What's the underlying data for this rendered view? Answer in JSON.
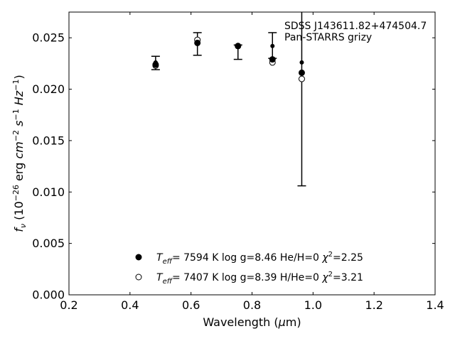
{
  "chart_data": {
    "type": "scatter",
    "xlabel": "Wavelength (μm)",
    "ylabel": "f_ν (10^−26 erg cm^−2 s^−1 Hz^−1)",
    "xlim": [
      0.2,
      1.4
    ],
    "ylim": [
      0.0,
      0.0275
    ],
    "x_ticks": [
      0.2,
      0.4,
      0.6,
      0.8,
      1.0,
      1.2,
      1.4
    ],
    "x_tick_labels": [
      "0.2",
      "0.4",
      "0.6",
      "0.8",
      "1.0",
      "1.2",
      "1.4"
    ],
    "y_ticks": [
      0.0,
      0.005,
      0.01,
      0.015,
      0.02,
      0.025
    ],
    "y_tick_labels": [
      "0.000",
      "0.005",
      "0.010",
      "0.015",
      "0.020",
      "0.025"
    ],
    "grid": false,
    "annotation": [
      "SDSS J143611.82+474504.7",
      "Pan-STARRS grizy"
    ],
    "observed": {
      "x": [
        0.484,
        0.621,
        0.754,
        0.867,
        0.963
      ],
      "y": [
        0.0226,
        0.0244,
        0.0242,
        0.0242,
        0.0226
      ],
      "err_low": [
        0.0219,
        0.0233,
        0.0229,
        0.023,
        0.0106
      ],
      "err_high": [
        0.0232,
        0.0255,
        0.0243,
        0.0255,
        0.0275
      ]
    },
    "series": [
      {
        "name_parts": [
          "T",
          "eff",
          "=  7594 K  log g=8.46  He/H=0  ",
          "χ",
          "2",
          "=2.25"
        ],
        "marker": "filled",
        "x": [
          0.484,
          0.621,
          0.754,
          0.867,
          0.963
        ],
        "y": [
          0.0224,
          0.0245,
          0.0242,
          0.0229,
          0.0216
        ]
      },
      {
        "name_parts": [
          "T",
          "eff",
          "=  7407 K  log g=8.39  H/He=0  ",
          "χ",
          "2",
          "=3.21"
        ],
        "marker": "open",
        "x": [
          0.484,
          0.621,
          0.754,
          0.867,
          0.963
        ],
        "y": [
          0.0223,
          0.0248,
          0.0242,
          0.0226,
          0.021
        ]
      }
    ],
    "legend_position": "lower-center"
  }
}
